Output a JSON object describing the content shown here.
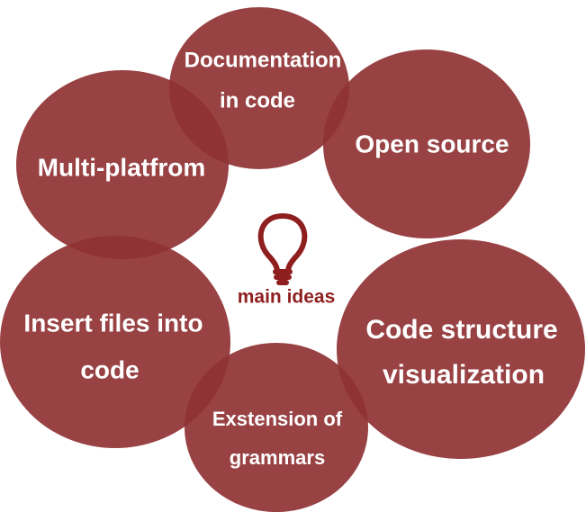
{
  "colors": {
    "bubble": "#8f3234",
    "label": "#ffffff",
    "center": "#8f1f1f"
  },
  "center": {
    "icon": "lightbulb-icon",
    "label": "main ideas"
  },
  "ideas": [
    {
      "line1": "Documentation",
      "line2": "in code"
    },
    {
      "line1": "Open source",
      "line2": ""
    },
    {
      "line1": "Multi-platfrom",
      "line2": ""
    },
    {
      "line1": "Insert files into",
      "line2": "code"
    },
    {
      "line1": "Code structure",
      "line2": "visualization"
    },
    {
      "line1": "Exstension of",
      "line2": "grammars"
    }
  ]
}
